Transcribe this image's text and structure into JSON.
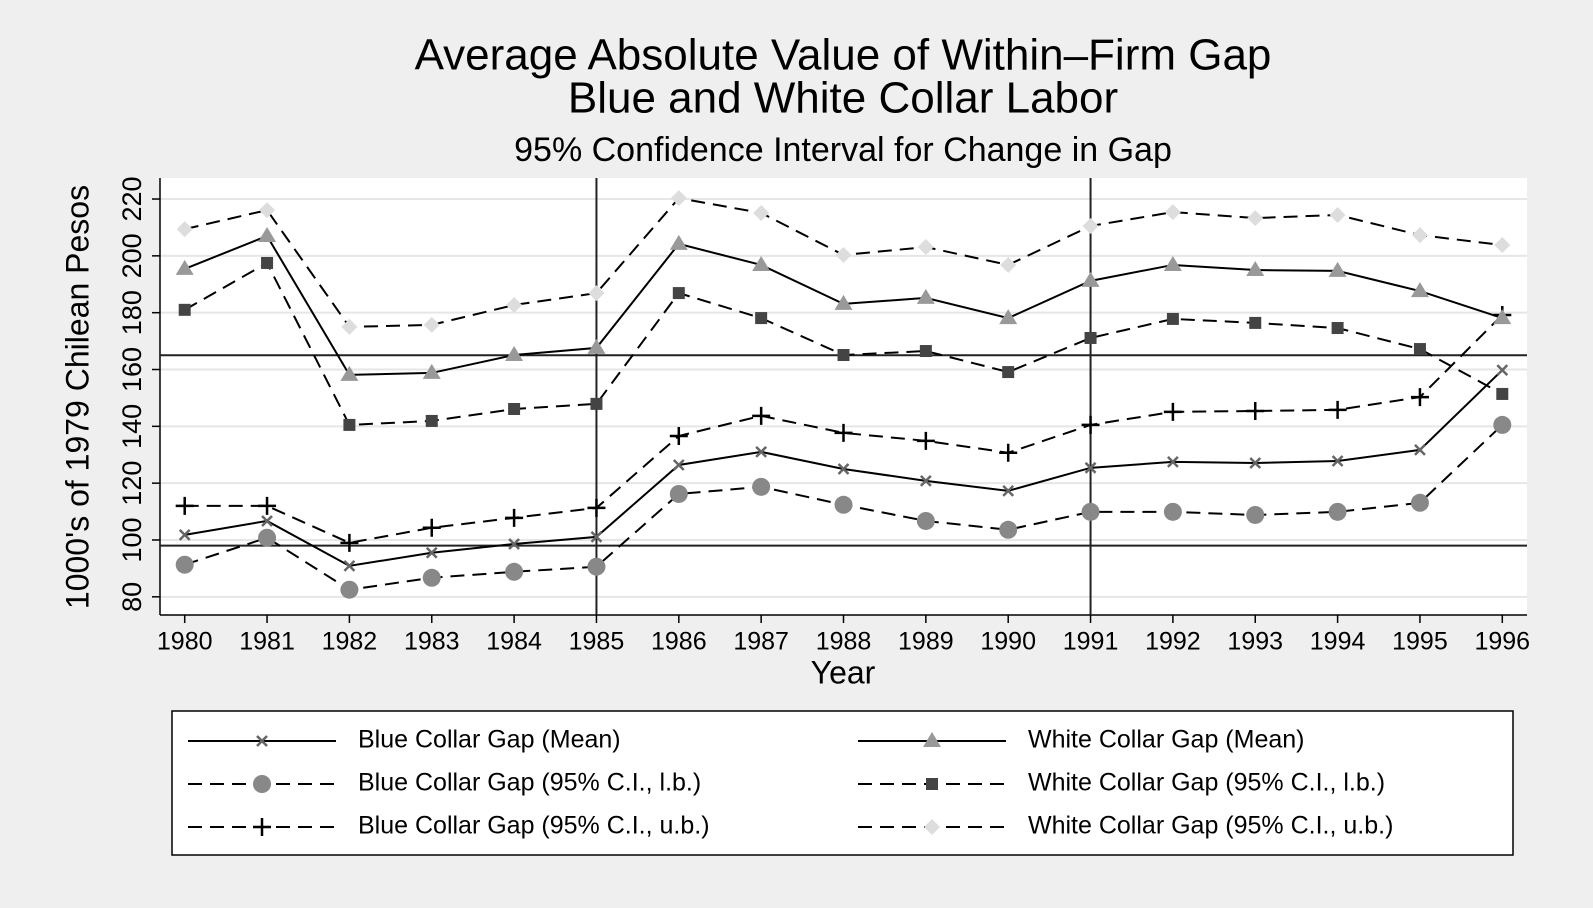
{
  "chart_data": {
    "type": "line",
    "title": "Average Absolute Value of Within–Firm Gap",
    "title_line2": "Blue and White Collar Labor",
    "subtitle": "95% Confidence Interval for Change in Gap",
    "x_label": "Year",
    "y_label": "1000's of 1979 Chilean Pesos",
    "x": [
      1980,
      1981,
      1982,
      1983,
      1984,
      1985,
      1986,
      1987,
      1988,
      1989,
      1990,
      1991,
      1992,
      1993,
      1994,
      1995,
      1996
    ],
    "xlim": [
      1979.7,
      1996.3
    ],
    "xticks": [
      1980,
      1981,
      1982,
      1983,
      1984,
      1985,
      1986,
      1987,
      1988,
      1989,
      1990,
      1991,
      1992,
      1993,
      1994,
      1995,
      1996
    ],
    "ylim": [
      73.6,
      227.4
    ],
    "yticks": [
      80,
      100,
      120,
      140,
      160,
      180,
      200,
      220
    ],
    "grid": true,
    "hlines": [
      165,
      98
    ],
    "vlines": [
      1985,
      1991
    ],
    "series": [
      {
        "name": "Blue Collar Gap (Mean)",
        "color": "#000000",
        "dash": false,
        "marker": "x",
        "marker_color": "#666666",
        "values": [
          101.8,
          106.7,
          90.9,
          95.5,
          98.6,
          101.1,
          126.4,
          131,
          125,
          120.8,
          117.3,
          125.4,
          127.5,
          127.1,
          127.8,
          131.7,
          159.8
        ]
      },
      {
        "name": "Blue Collar Gap (95% C.I., l.b.)",
        "color": "#000000",
        "dash": true,
        "marker": "circle",
        "marker_color": "#888888",
        "values": [
          91.3,
          100.8,
          82.5,
          86.7,
          88.8,
          90.6,
          116.2,
          118.7,
          112.4,
          106.7,
          103.6,
          109.9,
          109.9,
          108.8,
          109.9,
          113.1,
          140.5
        ]
      },
      {
        "name": "Blue Collar Gap (95% C.I., u.b.)",
        "color": "#000000",
        "dash": true,
        "marker": "plus",
        "marker_color": "#000000",
        "values": [
          112,
          112,
          99,
          104.3,
          107.8,
          111.3,
          136.6,
          143.7,
          137.7,
          134.9,
          130.7,
          140.5,
          145.1,
          145.4,
          145.8,
          150.3,
          179.2
        ]
      },
      {
        "name": "White Collar Gap (Mean)",
        "color": "#000000",
        "dash": false,
        "marker": "triangle",
        "marker_color": "#999999",
        "values": [
          195.4,
          207,
          158.1,
          158.8,
          165.1,
          167.6,
          204.2,
          196.8,
          183.1,
          185.2,
          178.1,
          191.2,
          196.8,
          195,
          194.7,
          187.6,
          178.1
        ]
      },
      {
        "name": "White Collar Gap (95% C.I., l.b.)",
        "color": "#000000",
        "dash": true,
        "marker": "square",
        "marker_color": "#444444",
        "values": [
          181,
          197.5,
          140.5,
          141.9,
          146.1,
          147.9,
          186.9,
          178.1,
          165.1,
          166.5,
          159.1,
          171.1,
          177.8,
          176.4,
          174.6,
          167.2,
          151.4
        ]
      },
      {
        "name": "White Collar Gap (95% C.I., u.b.)",
        "color": "#000000",
        "dash": true,
        "marker": "diamond",
        "marker_color": "#dddddd",
        "values": [
          209.4,
          216.1,
          175,
          175.7,
          182.7,
          186.9,
          220.3,
          215.1,
          200.3,
          203.1,
          196.8,
          210.5,
          215.4,
          213.3,
          214.4,
          207.3,
          203.8
        ]
      }
    ]
  }
}
